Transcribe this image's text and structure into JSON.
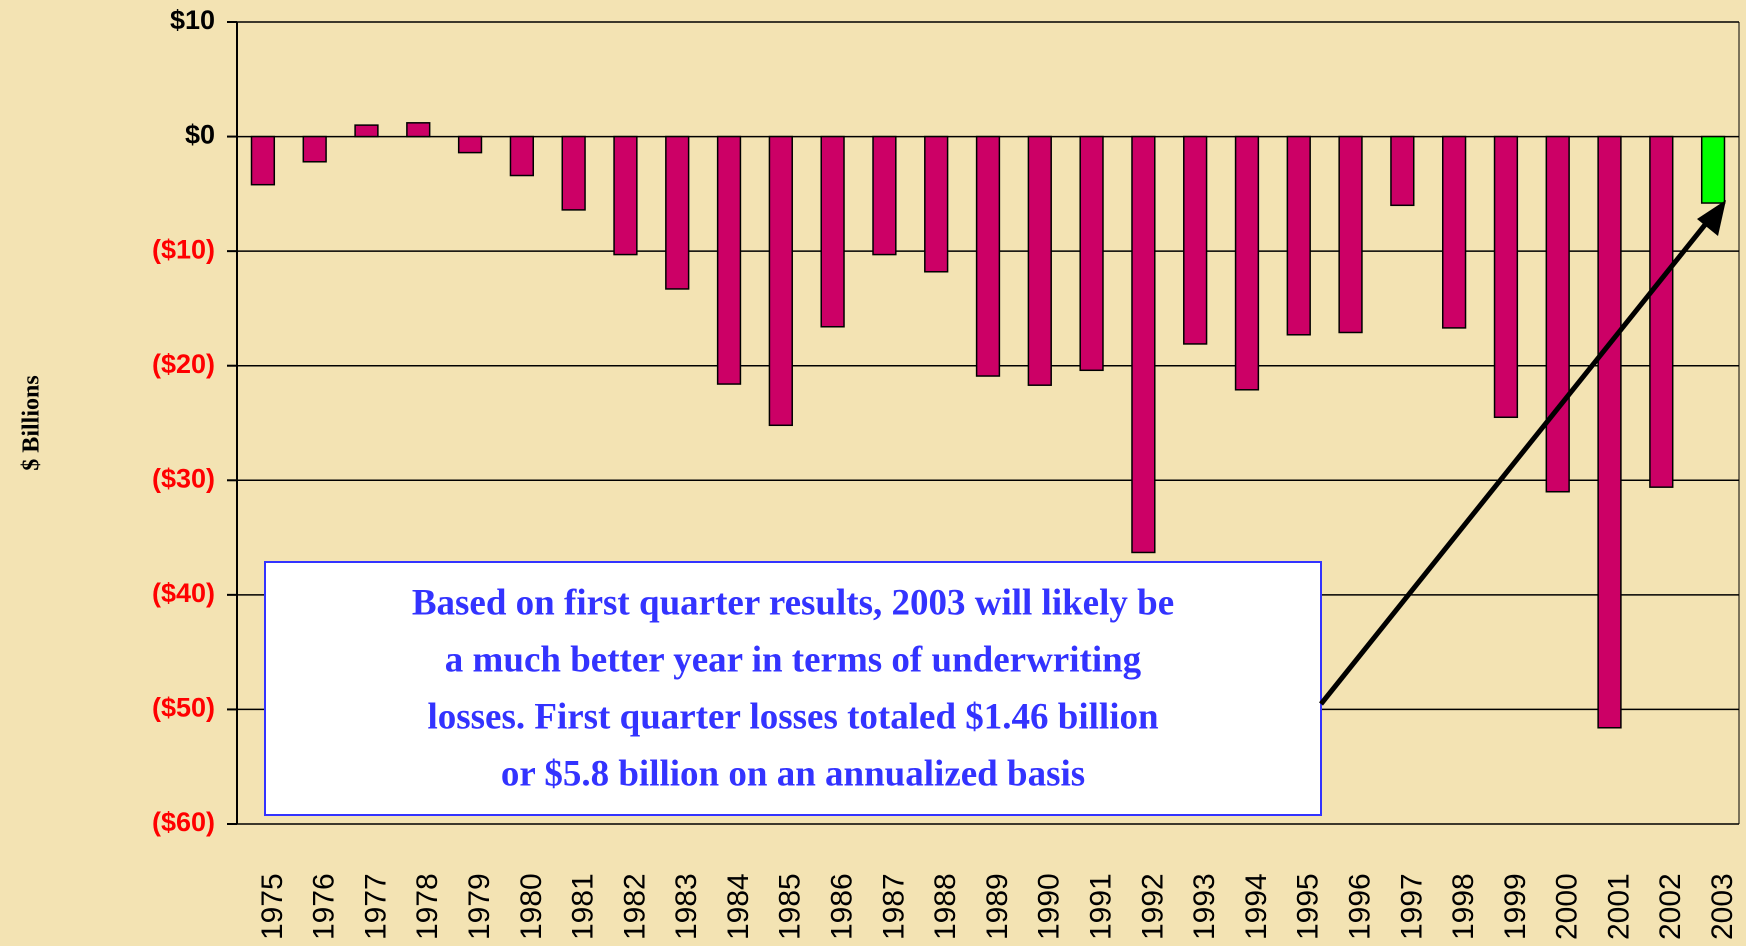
{
  "chart_data": {
    "type": "bar",
    "y_axis_label": "$ Billions",
    "categories": [
      "1975",
      "1976",
      "1977",
      "1978",
      "1979",
      "1980",
      "1981",
      "1982",
      "1983",
      "1984",
      "1985",
      "1986",
      "1987",
      "1988",
      "1989",
      "1990",
      "1991",
      "1992",
      "1993",
      "1994",
      "1995",
      "1996",
      "1997",
      "1998",
      "1999",
      "2000",
      "2001",
      "2002",
      "2003"
    ],
    "values": [
      -4.2,
      -2.2,
      1.0,
      1.2,
      -1.4,
      -3.4,
      -6.4,
      -10.3,
      -13.3,
      -21.6,
      -25.2,
      -16.6,
      -10.3,
      -11.8,
      -20.9,
      -21.7,
      -20.4,
      -36.3,
      -18.1,
      -22.1,
      -17.3,
      -17.1,
      -6.0,
      -16.7,
      -24.5,
      -31.0,
      -51.6,
      -30.6,
      -5.8
    ],
    "colors": [
      "#cc0066",
      "#cc0066",
      "#cc0066",
      "#cc0066",
      "#cc0066",
      "#cc0066",
      "#cc0066",
      "#cc0066",
      "#cc0066",
      "#cc0066",
      "#cc0066",
      "#cc0066",
      "#cc0066",
      "#cc0066",
      "#cc0066",
      "#cc0066",
      "#cc0066",
      "#cc0066",
      "#cc0066",
      "#cc0066",
      "#cc0066",
      "#cc0066",
      "#cc0066",
      "#cc0066",
      "#cc0066",
      "#cc0066",
      "#cc0066",
      "#cc0066",
      "#00ff00"
    ],
    "ylim": [
      -60,
      10
    ],
    "yticks": [
      {
        "value": 10,
        "label": "$10"
      },
      {
        "value": 0,
        "label": "$0"
      },
      {
        "value": -10,
        "label": "($10)"
      },
      {
        "value": -20,
        "label": "($20)"
      },
      {
        "value": -30,
        "label": "($30)"
      },
      {
        "value": -40,
        "label": "($40)"
      },
      {
        "value": -50,
        "label": "($50)"
      },
      {
        "value": -60,
        "label": "($60)"
      }
    ],
    "grid": true,
    "annotation": [
      "Based on first quarter results, 2003 will likely be",
      "a much better year in terms of underwriting",
      "losses.  First quarter losses totaled $1.46 billion",
      "or $5.8 billion on an annualized basis"
    ]
  }
}
